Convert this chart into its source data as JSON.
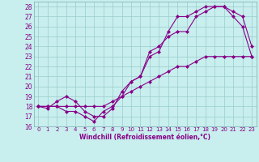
{
  "xlabel": "Windchill (Refroidissement éolien,°C)",
  "xlim": [
    -0.5,
    23.5
  ],
  "ylim": [
    16,
    28.5
  ],
  "xticks": [
    0,
    1,
    2,
    3,
    4,
    5,
    6,
    7,
    8,
    9,
    10,
    11,
    12,
    13,
    14,
    15,
    16,
    17,
    18,
    19,
    20,
    21,
    22,
    23
  ],
  "yticks": [
    16,
    17,
    18,
    19,
    20,
    21,
    22,
    23,
    24,
    25,
    26,
    27,
    28
  ],
  "bg_color": "#c8eeee",
  "line_color": "#880088",
  "grid_color": "#99cccc",
  "line1_x": [
    0,
    1,
    2,
    3,
    4,
    5,
    6,
    7,
    8,
    9,
    10,
    11,
    12,
    13,
    14,
    15,
    16,
    17,
    18,
    19,
    20,
    21,
    22,
    23
  ],
  "line1_y": [
    18,
    17.8,
    18.5,
    19,
    18.5,
    17.5,
    17.0,
    17.0,
    17.8,
    19.5,
    20.5,
    21,
    23.5,
    24,
    25,
    25.5,
    25.5,
    27,
    27.5,
    28,
    28,
    27.5,
    27,
    24
  ],
  "line2_x": [
    0,
    1,
    2,
    3,
    4,
    5,
    6,
    7,
    8,
    9,
    10,
    11,
    12,
    13,
    14,
    15,
    16,
    17,
    18,
    19,
    20,
    21,
    22,
    23
  ],
  "line2_y": [
    18,
    18,
    18,
    17.5,
    17.5,
    17,
    16.5,
    17.5,
    18,
    19,
    20.5,
    21,
    23,
    23.5,
    25.5,
    27,
    27,
    27.5,
    28,
    28,
    28,
    27,
    26,
    23
  ],
  "line3_x": [
    0,
    1,
    2,
    3,
    4,
    5,
    6,
    7,
    8,
    9,
    10,
    11,
    12,
    13,
    14,
    15,
    16,
    17,
    18,
    19,
    20,
    21,
    22,
    23
  ],
  "line3_y": [
    18,
    18,
    18,
    18,
    18,
    18,
    18,
    18,
    18.5,
    19,
    19.5,
    20,
    20.5,
    21,
    21.5,
    22,
    22,
    22.5,
    23,
    23,
    23,
    23,
    23,
    23
  ]
}
